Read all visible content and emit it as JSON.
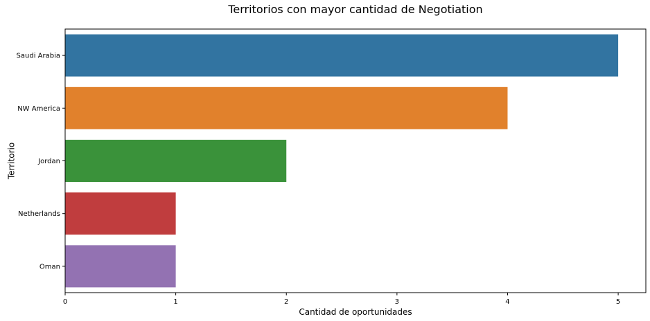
{
  "chart_data": {
    "type": "bar",
    "orientation": "horizontal",
    "title": "Territorios con mayor cantidad de Negotiation",
    "xlabel": "Cantidad de oportunidades",
    "ylabel": "Territorio",
    "categories": [
      "Saudi Arabia",
      "NW America",
      "Jordan",
      "Netherlands",
      "Oman"
    ],
    "values": [
      5,
      4,
      2,
      1,
      1
    ],
    "colors": [
      "#3274a1",
      "#e1812c",
      "#3a923a",
      "#c03d3e",
      "#9372b2"
    ],
    "xlim": [
      0,
      5.25
    ],
    "xticks": [
      0,
      1,
      2,
      3,
      4,
      5
    ],
    "grid": false,
    "legend": "none"
  }
}
